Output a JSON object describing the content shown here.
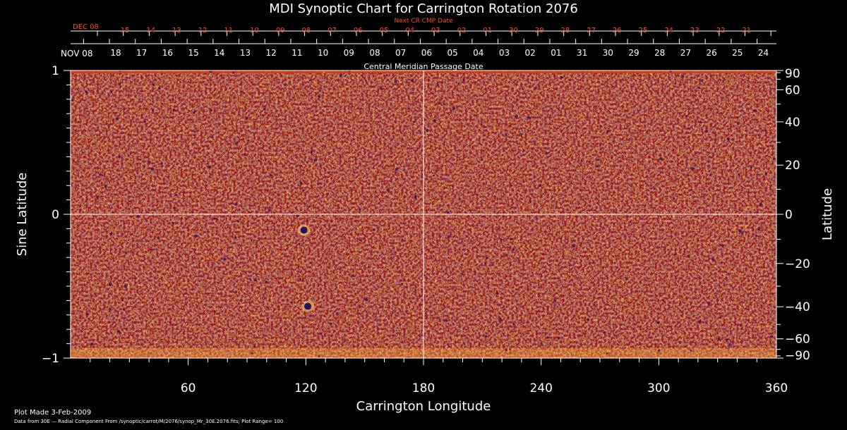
{
  "title": "MDI Synoptic Chart for Carrington Rotation 2076",
  "footer": {
    "plot_made": "Plot Made  3-Feb-2009",
    "data_source": "Data from 30E — Radial Component From /synoptic/carrot/M/2076/synop_Mr_30E.2076.fits; Plot Range= 100"
  },
  "colors": {
    "background": "#000000",
    "axis": "#ffffff",
    "next_cr_text": "#ff4a2a",
    "map_base": "#ff5a18",
    "map_bright": "#ffd040",
    "map_dark": "#2a1060",
    "map_mid": "#e03810"
  },
  "chart_data": {
    "type": "heatmap",
    "title": "MDI Synoptic Chart for Carrington Rotation 2076",
    "xlabel": "Carrington Longitude",
    "ylabel_left": "Sine Latitude",
    "ylabel_right": "Latitude",
    "xlim": [
      0,
      360
    ],
    "ylim": [
      -1,
      1
    ],
    "x_ticks": [
      60,
      120,
      180,
      240,
      300,
      360
    ],
    "y_left_ticks": [
      {
        "value": 1,
        "label": "1"
      },
      {
        "value": 0,
        "label": "0"
      },
      {
        "value": -1,
        "label": "−1"
      }
    ],
    "y_right_ticks": [
      90,
      60,
      40,
      20,
      0,
      -20,
      -40,
      -60,
      -90
    ],
    "y_right_labels": [
      "90",
      "60",
      "40",
      "20",
      "0",
      "−20",
      "−40",
      "−60",
      "−90"
    ],
    "cmp_axis": {
      "title": "Central Meridian Passage Date",
      "start_label": "NOV 08",
      "dates": [
        "18",
        "17",
        "16",
        "15",
        "14",
        "13",
        "12",
        "11",
        "10",
        "09",
        "08",
        "07",
        "06",
        "05",
        "04",
        "03",
        "02",
        "01",
        "31",
        "30",
        "29",
        "28",
        "27",
        "26",
        "25",
        "24"
      ]
    },
    "next_cr_axis": {
      "title": "Next CR CMP Date",
      "start_label": "DEC 08",
      "dates": [
        "15",
        "14",
        "13",
        "12",
        "11",
        "10",
        "09",
        "08",
        "07",
        "06",
        "05",
        "04",
        "03",
        "02",
        "01",
        "30",
        "29",
        "28",
        "27",
        "26",
        "25",
        "24",
        "23",
        "22",
        "21"
      ]
    },
    "features": [
      {
        "name": "sunspot",
        "longitude": 119,
        "sine_latitude": -0.11
      },
      {
        "name": "plage",
        "longitude": 121,
        "sine_latitude": -0.64
      }
    ]
  }
}
